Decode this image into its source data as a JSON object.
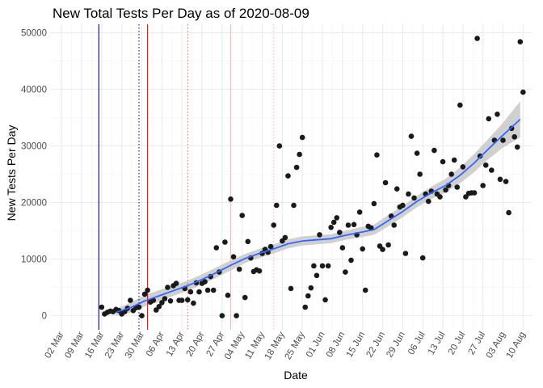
{
  "chart_data": {
    "type": "scatter",
    "title": "New Total Tests Per Day as of 2020-08-09",
    "xlabel": "Date",
    "ylabel": "New Tests Per Day",
    "x_axis": {
      "type": "date",
      "range": [
        "2020-02-27",
        "2020-08-13"
      ],
      "tick_dates": [
        "2020-03-02",
        "2020-03-09",
        "2020-03-16",
        "2020-03-23",
        "2020-03-30",
        "2020-04-06",
        "2020-04-13",
        "2020-04-20",
        "2020-04-27",
        "2020-05-04",
        "2020-05-11",
        "2020-05-18",
        "2020-05-25",
        "2020-06-01",
        "2020-06-08",
        "2020-06-15",
        "2020-06-22",
        "2020-06-29",
        "2020-07-06",
        "2020-07-13",
        "2020-07-20",
        "2020-07-27",
        "2020-08-03",
        "2020-08-10"
      ],
      "tick_labels": [
        "02 Mar",
        "09 Mar",
        "16 Mar",
        "23 Mar",
        "30 Mar",
        "06 Apr",
        "13 Apr",
        "20 Apr",
        "27 Apr",
        "04 May",
        "11 May",
        "18 May",
        "25 May",
        "01 Jun",
        "08 Jun",
        "15 Jun",
        "22 Jun",
        "29 Jun",
        "06 Jul",
        "13 Jul",
        "20 Jul",
        "27 Jul",
        "03 Aug",
        "10 Aug"
      ]
    },
    "y_axis": {
      "range": [
        -2500,
        51500
      ],
      "ticks": [
        0,
        10000,
        20000,
        30000,
        40000,
        50000
      ],
      "tick_labels": [
        "0",
        "10000",
        "20000",
        "30000",
        "40000",
        "50000"
      ]
    },
    "grid": true,
    "vertical_lines": [
      {
        "date": "2020-03-15",
        "color": "#00008b",
        "style": "solid"
      },
      {
        "date": "2020-03-29",
        "color": "#0000ff",
        "style": "dotted"
      },
      {
        "date": "2020-04-01",
        "color": "#ff0000",
        "style": "solid"
      },
      {
        "date": "2020-04-15",
        "color": "#e36a6a",
        "style": "dotted"
      },
      {
        "date": "2020-04-30",
        "color": "#ffb6c1",
        "style": "solid"
      },
      {
        "date": "2020-05-15",
        "color": "#ffb6c1",
        "style": "dotted"
      }
    ],
    "series": [
      {
        "point_color": "#1a1a1a",
        "points": [
          [
            "2020-03-16",
            1500
          ],
          [
            "2020-03-17",
            300
          ],
          [
            "2020-03-18",
            600
          ],
          [
            "2020-03-19",
            800
          ],
          [
            "2020-03-20",
            700
          ],
          [
            "2020-03-21",
            1100
          ],
          [
            "2020-03-22",
            900
          ],
          [
            "2020-03-23",
            300
          ],
          [
            "2020-03-24",
            700
          ],
          [
            "2020-03-25",
            1300
          ],
          [
            "2020-03-26",
            2700
          ],
          [
            "2020-03-27",
            900
          ],
          [
            "2020-03-28",
            1400
          ],
          [
            "2020-03-29",
            1500
          ],
          [
            "2020-03-30",
            0
          ],
          [
            "2020-03-31",
            3800
          ],
          [
            "2020-04-01",
            4500
          ],
          [
            "2020-04-02",
            2400
          ],
          [
            "2020-04-03",
            2700
          ],
          [
            "2020-04-04",
            1000
          ],
          [
            "2020-04-05",
            1600
          ],
          [
            "2020-04-06",
            2300
          ],
          [
            "2020-04-07",
            3000
          ],
          [
            "2020-04-08",
            5000
          ],
          [
            "2020-04-09",
            2600
          ],
          [
            "2020-04-10",
            5300
          ],
          [
            "2020-04-11",
            5700
          ],
          [
            "2020-04-12",
            2700
          ],
          [
            "2020-04-13",
            2700
          ],
          [
            "2020-04-14",
            4800
          ],
          [
            "2020-04-15",
            2800
          ],
          [
            "2020-04-16",
            4200
          ],
          [
            "2020-04-17",
            2200
          ],
          [
            "2020-04-18",
            5800
          ],
          [
            "2020-04-19",
            4200
          ],
          [
            "2020-04-20",
            5700
          ],
          [
            "2020-04-21",
            6000
          ],
          [
            "2020-04-22",
            4500
          ],
          [
            "2020-04-23",
            6900
          ],
          [
            "2020-04-24",
            4500
          ],
          [
            "2020-04-25",
            12000
          ],
          [
            "2020-04-26",
            7700
          ],
          [
            "2020-04-27",
            0
          ],
          [
            "2020-04-28",
            13000
          ],
          [
            "2020-04-29",
            3600
          ],
          [
            "2020-04-30",
            20600
          ],
          [
            "2020-05-01",
            10400
          ],
          [
            "2020-05-02",
            0
          ],
          [
            "2020-05-03",
            8200
          ],
          [
            "2020-05-04",
            17700
          ],
          [
            "2020-05-05",
            3200
          ],
          [
            "2020-05-06",
            13100
          ],
          [
            "2020-05-07",
            10200
          ],
          [
            "2020-05-08",
            7800
          ],
          [
            "2020-05-09",
            8100
          ],
          [
            "2020-05-10",
            7900
          ],
          [
            "2020-05-11",
            11000
          ],
          [
            "2020-05-12",
            11700
          ],
          [
            "2020-05-13",
            11200
          ],
          [
            "2020-05-14",
            12200
          ],
          [
            "2020-05-15",
            16000
          ],
          [
            "2020-05-16",
            19500
          ],
          [
            "2020-05-17",
            30000
          ],
          [
            "2020-05-18",
            13200
          ],
          [
            "2020-05-19",
            13800
          ],
          [
            "2020-05-20",
            24700
          ],
          [
            "2020-05-21",
            4800
          ],
          [
            "2020-05-22",
            19500
          ],
          [
            "2020-05-23",
            26200
          ],
          [
            "2020-05-24",
            28500
          ],
          [
            "2020-05-25",
            31500
          ],
          [
            "2020-05-26",
            1500
          ],
          [
            "2020-05-27",
            3500
          ],
          [
            "2020-05-28",
            4900
          ],
          [
            "2020-05-29",
            8800
          ],
          [
            "2020-05-30",
            7100
          ],
          [
            "2020-05-31",
            14300
          ],
          [
            "2020-06-01",
            8800
          ],
          [
            "2020-06-02",
            2800
          ],
          [
            "2020-06-03",
            8800
          ],
          [
            "2020-06-04",
            15600
          ],
          [
            "2020-06-05",
            16500
          ],
          [
            "2020-06-06",
            17300
          ],
          [
            "2020-06-07",
            14700
          ],
          [
            "2020-06-08",
            12000
          ],
          [
            "2020-06-09",
            7700
          ],
          [
            "2020-06-10",
            16000
          ],
          [
            "2020-06-11",
            9800
          ],
          [
            "2020-06-12",
            16100
          ],
          [
            "2020-06-13",
            14300
          ],
          [
            "2020-06-14",
            18300
          ],
          [
            "2020-06-15",
            11800
          ],
          [
            "2020-06-16",
            4500
          ],
          [
            "2020-06-17",
            15800
          ],
          [
            "2020-06-18",
            15500
          ],
          [
            "2020-06-19",
            19800
          ],
          [
            "2020-06-20",
            28400
          ],
          [
            "2020-06-21",
            12300
          ],
          [
            "2020-06-22",
            11700
          ],
          [
            "2020-06-23",
            23500
          ],
          [
            "2020-06-24",
            12500
          ],
          [
            "2020-06-25",
            17600
          ],
          [
            "2020-06-26",
            16000
          ],
          [
            "2020-06-27",
            22400
          ],
          [
            "2020-06-28",
            19200
          ],
          [
            "2020-06-29",
            19500
          ],
          [
            "2020-06-30",
            11000
          ],
          [
            "2020-07-01",
            21500
          ],
          [
            "2020-07-02",
            31700
          ],
          [
            "2020-07-03",
            20800
          ],
          [
            "2020-07-04",
            28700
          ],
          [
            "2020-07-05",
            25000
          ],
          [
            "2020-07-06",
            10200
          ],
          [
            "2020-07-07",
            21500
          ],
          [
            "2020-07-08",
            20200
          ],
          [
            "2020-07-09",
            22000
          ],
          [
            "2020-07-10",
            29200
          ],
          [
            "2020-07-11",
            21500
          ],
          [
            "2020-07-12",
            21000
          ],
          [
            "2020-07-13",
            27200
          ],
          [
            "2020-07-14",
            22200
          ],
          [
            "2020-07-15",
            23000
          ],
          [
            "2020-07-16",
            25000
          ],
          [
            "2020-07-17",
            27500
          ],
          [
            "2020-07-18",
            22700
          ],
          [
            "2020-07-19",
            37200
          ],
          [
            "2020-07-20",
            26300
          ],
          [
            "2020-07-21",
            21000
          ],
          [
            "2020-07-22",
            21600
          ],
          [
            "2020-07-23",
            21700
          ],
          [
            "2020-07-24",
            21700
          ],
          [
            "2020-07-25",
            49000
          ],
          [
            "2020-07-26",
            28200
          ],
          [
            "2020-07-27",
            23000
          ],
          [
            "2020-07-28",
            26600
          ],
          [
            "2020-07-29",
            34800
          ],
          [
            "2020-07-30",
            25700
          ],
          [
            "2020-07-31",
            31000
          ],
          [
            "2020-08-01",
            35600
          ],
          [
            "2020-08-02",
            24100
          ],
          [
            "2020-08-03",
            31000
          ],
          [
            "2020-08-04",
            23700
          ],
          [
            "2020-08-05",
            18200
          ],
          [
            "2020-08-06",
            33100
          ],
          [
            "2020-08-07",
            31600
          ],
          [
            "2020-08-08",
            29800
          ],
          [
            "2020-08-09",
            48400
          ],
          [
            "2020-08-10",
            39500
          ]
        ]
      }
    ],
    "smooth": {
      "color": "#3366ff",
      "band_color": "#c8c8c8",
      "points": [
        [
          "2020-03-21",
          600,
          1200,
          0
        ],
        [
          "2020-03-26",
          1400,
          2300,
          500
        ],
        [
          "2020-03-31",
          2600,
          3600,
          1600
        ],
        [
          "2020-04-05",
          3500,
          4500,
          2500
        ],
        [
          "2020-04-10",
          4400,
          5300,
          3500
        ],
        [
          "2020-04-15",
          5300,
          6200,
          4400
        ],
        [
          "2020-04-20",
          6400,
          7300,
          5500
        ],
        [
          "2020-04-25",
          7600,
          8500,
          6700
        ],
        [
          "2020-04-30",
          8900,
          9800,
          8000
        ],
        [
          "2020-05-05",
          10100,
          10900,
          9300
        ],
        [
          "2020-05-10",
          11000,
          11800,
          10200
        ],
        [
          "2020-05-15",
          11800,
          12600,
          11000
        ],
        [
          "2020-05-20",
          12700,
          13500,
          11900
        ],
        [
          "2020-05-25",
          13200,
          14000,
          12400
        ],
        [
          "2020-05-30",
          13400,
          14200,
          12600
        ],
        [
          "2020-06-04",
          13600,
          14400,
          12800
        ],
        [
          "2020-06-09",
          14200,
          15000,
          13400
        ],
        [
          "2020-06-14",
          14700,
          15600,
          13800
        ],
        [
          "2020-06-19",
          15200,
          16100,
          14300
        ],
        [
          "2020-06-24",
          16800,
          17800,
          15800
        ],
        [
          "2020-06-29",
          18400,
          19400,
          17400
        ],
        [
          "2020-07-04",
          20200,
          21200,
          19200
        ],
        [
          "2020-07-09",
          21700,
          22800,
          20600
        ],
        [
          "2020-07-14",
          23000,
          24200,
          21800
        ],
        [
          "2020-07-19",
          24800,
          26200,
          23400
        ],
        [
          "2020-07-24",
          27000,
          28600,
          25400
        ],
        [
          "2020-07-29",
          29500,
          31300,
          27700
        ],
        [
          "2020-08-03",
          31900,
          34100,
          29700
        ],
        [
          "2020-08-09",
          34700,
          37900,
          31500
        ]
      ]
    }
  }
}
